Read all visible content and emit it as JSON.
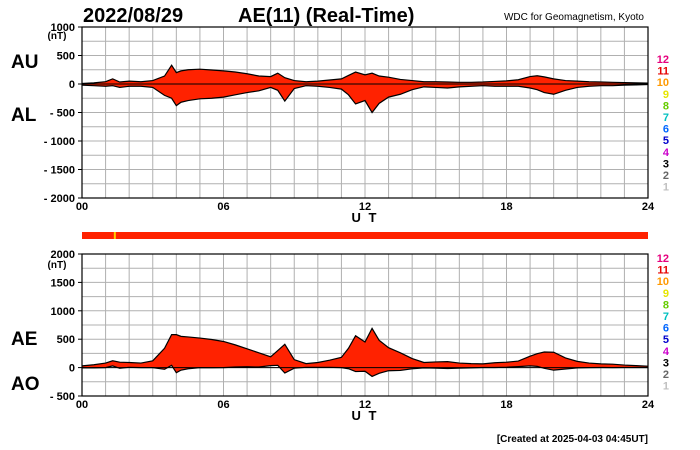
{
  "header": {
    "date": "2022/08/29",
    "title": "AE(11) (Real-Time)",
    "source": "WDC for Geomagnetism, Kyoto"
  },
  "footer": {
    "created": "[Created at 2025-04-03 04:45UT]"
  },
  "station_scale": {
    "labels": [
      "12",
      "11",
      "10",
      "9",
      "8",
      "7",
      "6",
      "5",
      "4",
      "3",
      "2",
      "1"
    ],
    "colors": [
      "#e6007e",
      "#e60000",
      "#ff9900",
      "#e6e600",
      "#66cc00",
      "#00c0c0",
      "#0066ff",
      "#0000cc",
      "#cc00cc",
      "#000000",
      "#666666",
      "#c0c0c0"
    ]
  },
  "colors": {
    "fill": "#ff2200",
    "line": "#000000",
    "grid": "#b0b0b0",
    "status_bar": "#ff2200",
    "status_mark": "#ffcc00"
  },
  "status_bar": {
    "mark_hour": 1.35
  },
  "chart_data": [
    {
      "type": "area",
      "name": "upper",
      "left_labels": [
        "AU",
        "AL"
      ],
      "unit": "(nT)",
      "ylim": [
        -2000,
        1000
      ],
      "yticks": [
        1000,
        500,
        0,
        -500,
        -1000,
        -1500,
        -2000
      ],
      "ytick_labels": [
        "1000",
        "500",
        "0",
        "- 500",
        "- 1000",
        "- 1500",
        "- 2000"
      ],
      "xlim": [
        0,
        24
      ],
      "xticks": [
        0,
        6,
        12,
        18,
        24
      ],
      "xtick_labels": [
        "00",
        "06",
        "12",
        "18",
        "24"
      ],
      "xlabel": "U T",
      "hours": [
        0,
        0.5,
        1,
        1.3,
        1.6,
        2,
        2.5,
        3,
        3.5,
        3.8,
        4,
        4.2,
        4.5,
        5,
        5.5,
        6,
        6.5,
        7,
        7.5,
        8,
        8.3,
        8.6,
        9,
        9.5,
        10,
        10.5,
        11,
        11.3,
        11.6,
        12,
        12.3,
        12.6,
        13,
        13.5,
        14,
        14.5,
        15,
        15.5,
        16,
        16.5,
        17,
        17.5,
        18,
        18.5,
        19,
        19.3,
        19.6,
        20,
        20.5,
        21,
        21.5,
        22,
        22.5,
        23,
        23.5,
        24
      ],
      "series": [
        {
          "name": "AU",
          "values": [
            10,
            20,
            40,
            90,
            35,
            50,
            40,
            60,
            140,
            330,
            200,
            230,
            250,
            260,
            245,
            230,
            210,
            180,
            140,
            130,
            190,
            110,
            60,
            40,
            50,
            70,
            90,
            150,
            210,
            160,
            190,
            140,
            120,
            80,
            60,
            40,
            40,
            35,
            30,
            30,
            35,
            45,
            55,
            75,
            130,
            145,
            125,
            90,
            60,
            50,
            40,
            35,
            30,
            25,
            20,
            15
          ]
        },
        {
          "name": "AL",
          "values": [
            -20,
            -30,
            -40,
            -30,
            -60,
            -40,
            -40,
            -60,
            -200,
            -250,
            -380,
            -320,
            -290,
            -260,
            -250,
            -230,
            -190,
            -150,
            -120,
            -60,
            -110,
            -300,
            -80,
            -30,
            -40,
            -60,
            -90,
            -190,
            -350,
            -290,
            -500,
            -340,
            -230,
            -180,
            -100,
            -50,
            -60,
            -70,
            -50,
            -40,
            -30,
            -40,
            -40,
            -40,
            -70,
            -100,
            -150,
            -180,
            -110,
            -60,
            -40,
            -30,
            -30,
            -20,
            -15,
            -10
          ]
        }
      ]
    },
    {
      "type": "area",
      "name": "lower",
      "left_labels": [
        "AE",
        "AO"
      ],
      "unit": "(nT)",
      "ylim": [
        -500,
        2000
      ],
      "yticks": [
        2000,
        1500,
        1000,
        500,
        0,
        -500
      ],
      "ytick_labels": [
        "2000",
        "1500",
        "1000",
        "500",
        "0",
        "- 500"
      ],
      "xlim": [
        0,
        24
      ],
      "xticks": [
        0,
        6,
        12,
        18,
        24
      ],
      "xtick_labels": [
        "00",
        "06",
        "12",
        "18",
        "24"
      ],
      "xlabel": "U T",
      "hours": [
        0,
        0.5,
        1,
        1.3,
        1.6,
        2,
        2.5,
        3,
        3.5,
        3.8,
        4,
        4.2,
        4.5,
        5,
        5.5,
        6,
        6.5,
        7,
        7.5,
        8,
        8.3,
        8.6,
        9,
        9.5,
        10,
        10.5,
        11,
        11.3,
        11.6,
        12,
        12.3,
        12.6,
        13,
        13.5,
        14,
        14.5,
        15,
        15.5,
        16,
        16.5,
        17,
        17.5,
        18,
        18.5,
        19,
        19.3,
        19.6,
        20,
        20.5,
        21,
        21.5,
        22,
        22.5,
        23,
        23.5,
        24
      ],
      "series": [
        {
          "name": "AE",
          "values": [
            30,
            50,
            80,
            120,
            95,
            90,
            80,
            120,
            340,
            580,
            580,
            550,
            540,
            520,
            495,
            460,
            400,
            330,
            260,
            190,
            300,
            410,
            140,
            70,
            90,
            130,
            180,
            340,
            560,
            450,
            690,
            480,
            350,
            260,
            160,
            90,
            100,
            105,
            80,
            70,
            65,
            85,
            95,
            115,
            200,
            245,
            275,
            270,
            170,
            110,
            80,
            65,
            60,
            45,
            35,
            25
          ]
        },
        {
          "name": "AO",
          "values": [
            -5,
            -5,
            0,
            30,
            -12,
            5,
            0,
            0,
            -30,
            40,
            -90,
            -45,
            -20,
            0,
            -2,
            0,
            10,
            15,
            10,
            35,
            40,
            -95,
            -10,
            5,
            5,
            5,
            0,
            -20,
            -70,
            -65,
            -155,
            -100,
            -55,
            -50,
            -20,
            -5,
            -10,
            -17,
            -10,
            -5,
            2,
            2,
            7,
            17,
            30,
            22,
            -12,
            -45,
            -25,
            -5,
            0,
            2,
            0,
            2,
            2,
            2
          ]
        }
      ]
    }
  ]
}
